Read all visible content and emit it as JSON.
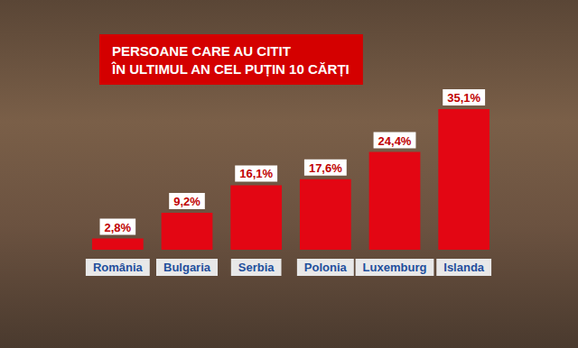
{
  "chart_data": {
    "type": "bar",
    "title": "PERSOANE CARE AU CITIT\nÎN ULTIMUL AN CEL PUȚIN 10 CĂRȚI",
    "categories": [
      "România",
      "Bulgaria",
      "Serbia",
      "Polonia",
      "Luxemburg",
      "Islanda"
    ],
    "values": [
      2.8,
      9.2,
      16.1,
      17.6,
      24.4,
      35.1
    ],
    "value_labels": [
      "2,8%",
      "9,2%",
      "16,1%",
      "17,6%",
      "24,4%",
      "35,1%"
    ],
    "color": "#e30613",
    "ylim": [
      0,
      35.1
    ],
    "grid": false,
    "data_labels": true,
    "tick_labels": "x"
  }
}
